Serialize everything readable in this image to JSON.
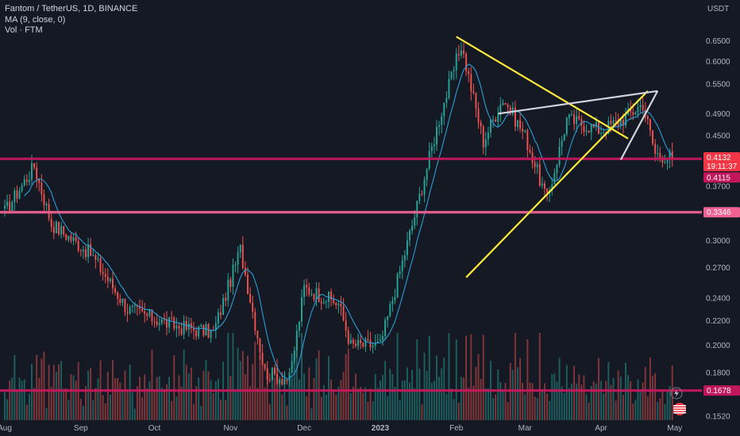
{
  "legend": {
    "symbol_line": "Fantom / TetherUS, 1D, BINANCE",
    "ma_line": "MA (9, close, 0)",
    "vol_line": "Vol · FTM"
  },
  "axis": {
    "currency": "USDT"
  },
  "chart_data": {
    "type": "candlestick",
    "title": "Fantom / TetherUS, 1D, BINANCE",
    "scale": "log",
    "ylim": [
      0.146,
      0.72
    ],
    "y_ticks": [
      "0.6500",
      "0.6000",
      "0.5500",
      "0.4900",
      "0.4500",
      "0.3700",
      "0.3000",
      "0.2700",
      "0.2400",
      "0.2200",
      "0.2000",
      "0.1800",
      "0.1520"
    ],
    "x_ticks": [
      "Aug",
      "Sep",
      "Oct",
      "Nov",
      "Dec",
      "2023",
      "Feb",
      "Mar",
      "Apr",
      "May"
    ],
    "x_range": [
      "2022-08-01",
      "2023-05-03"
    ],
    "series": [
      {
        "name": "MA (9, close, 0)",
        "kind": "line",
        "color": "#2a9dd8"
      },
      {
        "name": "Vol · FTM",
        "kind": "volume"
      }
    ],
    "key_points": [
      {
        "date": "2022-08-01",
        "close": 0.335
      },
      {
        "date": "2022-08-13",
        "close": 0.4
      },
      {
        "date": "2022-08-20",
        "close": 0.32
      },
      {
        "date": "2022-09-05",
        "close": 0.285
      },
      {
        "date": "2022-09-20",
        "close": 0.23
      },
      {
        "date": "2022-10-10",
        "close": 0.215
      },
      {
        "date": "2022-10-25",
        "close": 0.21
      },
      {
        "date": "2022-11-05",
        "close": 0.29
      },
      {
        "date": "2022-11-15",
        "close": 0.18
      },
      {
        "date": "2022-11-25",
        "close": 0.175
      },
      {
        "date": "2022-12-01",
        "close": 0.25
      },
      {
        "date": "2022-12-15",
        "close": 0.235
      },
      {
        "date": "2022-12-20",
        "close": 0.2
      },
      {
        "date": "2023-01-01",
        "close": 0.2
      },
      {
        "date": "2023-01-15",
        "close": 0.33
      },
      {
        "date": "2023-01-25",
        "close": 0.48
      },
      {
        "date": "2023-02-03",
        "close": 0.64
      },
      {
        "date": "2023-02-12",
        "close": 0.44
      },
      {
        "date": "2023-02-20",
        "close": 0.52
      },
      {
        "date": "2023-03-01",
        "close": 0.45
      },
      {
        "date": "2023-03-10",
        "close": 0.35
      },
      {
        "date": "2023-03-18",
        "close": 0.48
      },
      {
        "date": "2023-03-25",
        "close": 0.47
      },
      {
        "date": "2023-04-01",
        "close": 0.46
      },
      {
        "date": "2023-04-10",
        "close": 0.48
      },
      {
        "date": "2023-04-18",
        "close": 0.51
      },
      {
        "date": "2023-04-23",
        "close": 0.42
      },
      {
        "date": "2023-04-30",
        "close": 0.4132
      }
    ],
    "horizontal_levels": [
      {
        "label": "0.4115",
        "value": 0.4115,
        "color": "#c2185b"
      },
      {
        "label": "0.3346",
        "value": 0.3346,
        "color": "#f06292"
      },
      {
        "label": "0.1678",
        "value": 0.1678,
        "color": "#c2185b"
      }
    ],
    "trendlines": [
      {
        "color": "#ffeb3b",
        "from": {
          "date": "2023-02-01",
          "value": 0.66
        },
        "to": {
          "date": "2023-04-12",
          "value": 0.445
        }
      },
      {
        "color": "#ffeb3b",
        "from": {
          "date": "2023-02-05",
          "value": 0.26
        },
        "to": {
          "date": "2023-04-20",
          "value": 0.535
        }
      },
      {
        "color": "#d1d4dc",
        "from": {
          "date": "2023-02-18",
          "value": 0.49
        },
        "to": {
          "date": "2023-04-24",
          "value": 0.535
        }
      },
      {
        "color": "#d1d4dc",
        "from": {
          "date": "2023-04-24",
          "value": 0.535
        },
        "to": {
          "date": "2023-04-09",
          "value": 0.41
        }
      }
    ],
    "price_tags": [
      {
        "value": 0.4132,
        "price": "0.4132",
        "countdown": "19:11:37",
        "color": "#f23645"
      },
      {
        "value": 0.4115,
        "price": "0.4115",
        "color": "#c2185b"
      },
      {
        "value": 0.3346,
        "price": "0.3346",
        "color": "#f06292"
      },
      {
        "value": 0.1678,
        "price": "0.1678",
        "color": "#c2185b"
      }
    ],
    "colors": {
      "up": "#26a69a",
      "down": "#ef5350",
      "ma": "#2a9dd8",
      "background": "#151924"
    }
  }
}
